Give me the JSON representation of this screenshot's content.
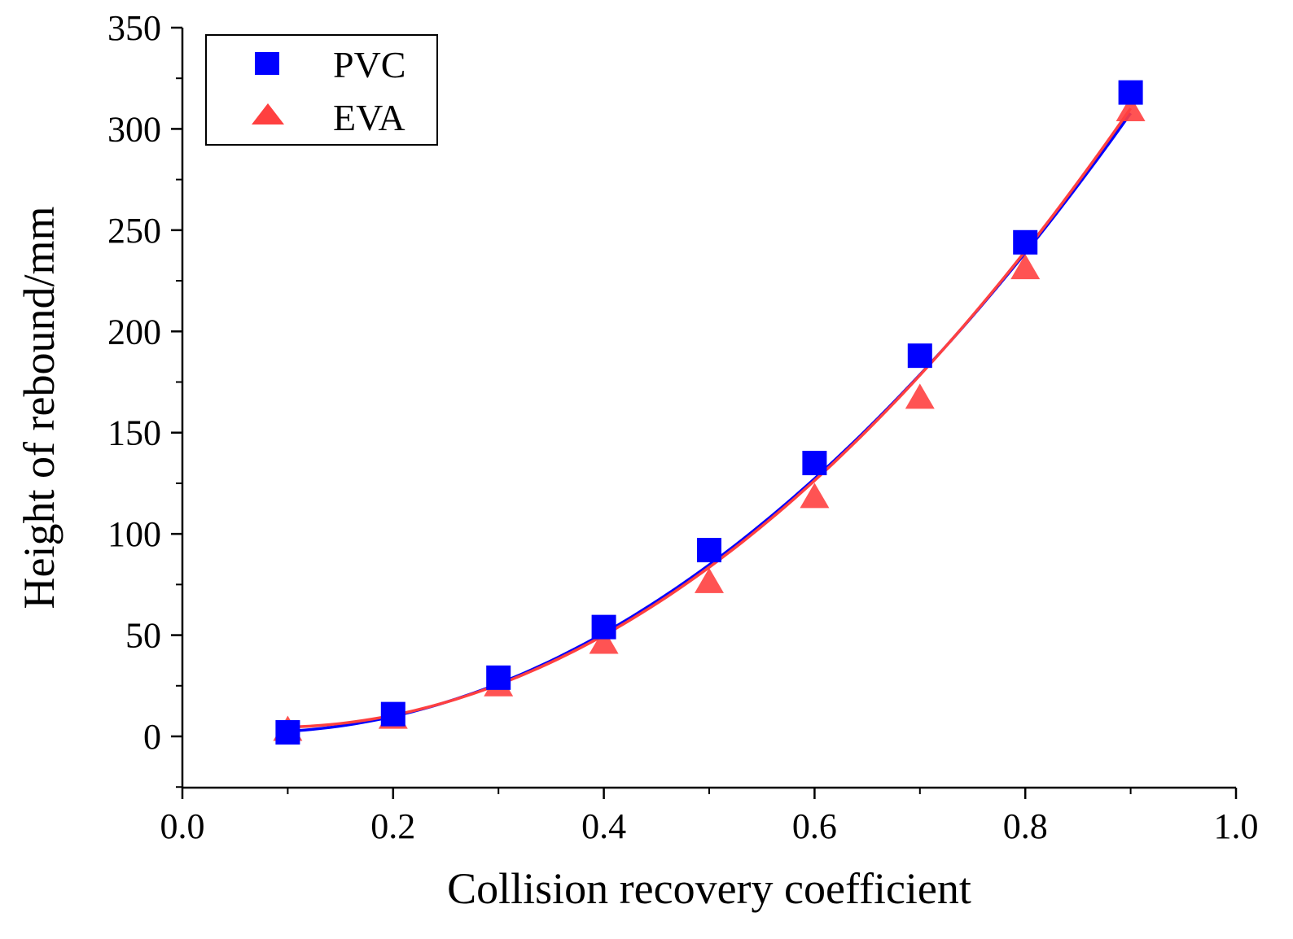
{
  "chart_data": {
    "type": "scatter",
    "title": "",
    "xlabel": "Collision recovery coefficient",
    "ylabel": "Height of rebound/mm",
    "xlim": [
      0.0,
      1.0
    ],
    "ylim": [
      -25,
      350
    ],
    "xticks": [
      0.0,
      0.2,
      0.4,
      0.6,
      0.8,
      1.0
    ],
    "xtick_labels": [
      "0.0",
      "0.2",
      "0.4",
      "0.6",
      "0.8",
      "1.0"
    ],
    "yticks": [
      0,
      50,
      100,
      150,
      200,
      250,
      300,
      350
    ],
    "ytick_labels": [
      "0",
      "50",
      "100",
      "150",
      "200",
      "250",
      "300",
      "350"
    ],
    "grid": false,
    "legend_position": "top-left",
    "series": [
      {
        "name": "PVC",
        "marker": "square",
        "color": "#0000ff",
        "x": [
          0.1,
          0.2,
          0.3,
          0.4,
          0.5,
          0.6,
          0.7,
          0.8,
          0.9
        ],
        "values": [
          2,
          11,
          29,
          54,
          92,
          135,
          188,
          244,
          318
        ],
        "fit": [
          4.01,
          -58.63,
          440.15
        ]
      },
      {
        "name": "EVA",
        "marker": "triangle",
        "color": "#ff4040",
        "x": [
          0.1,
          0.2,
          0.3,
          0.4,
          0.5,
          0.6,
          0.7,
          0.8,
          0.9
        ],
        "values": [
          3,
          9,
          25,
          46,
          76,
          118,
          167,
          231,
          309
        ],
        "fit": [
          7.93,
          -79.64,
          461.62
        ]
      }
    ]
  }
}
